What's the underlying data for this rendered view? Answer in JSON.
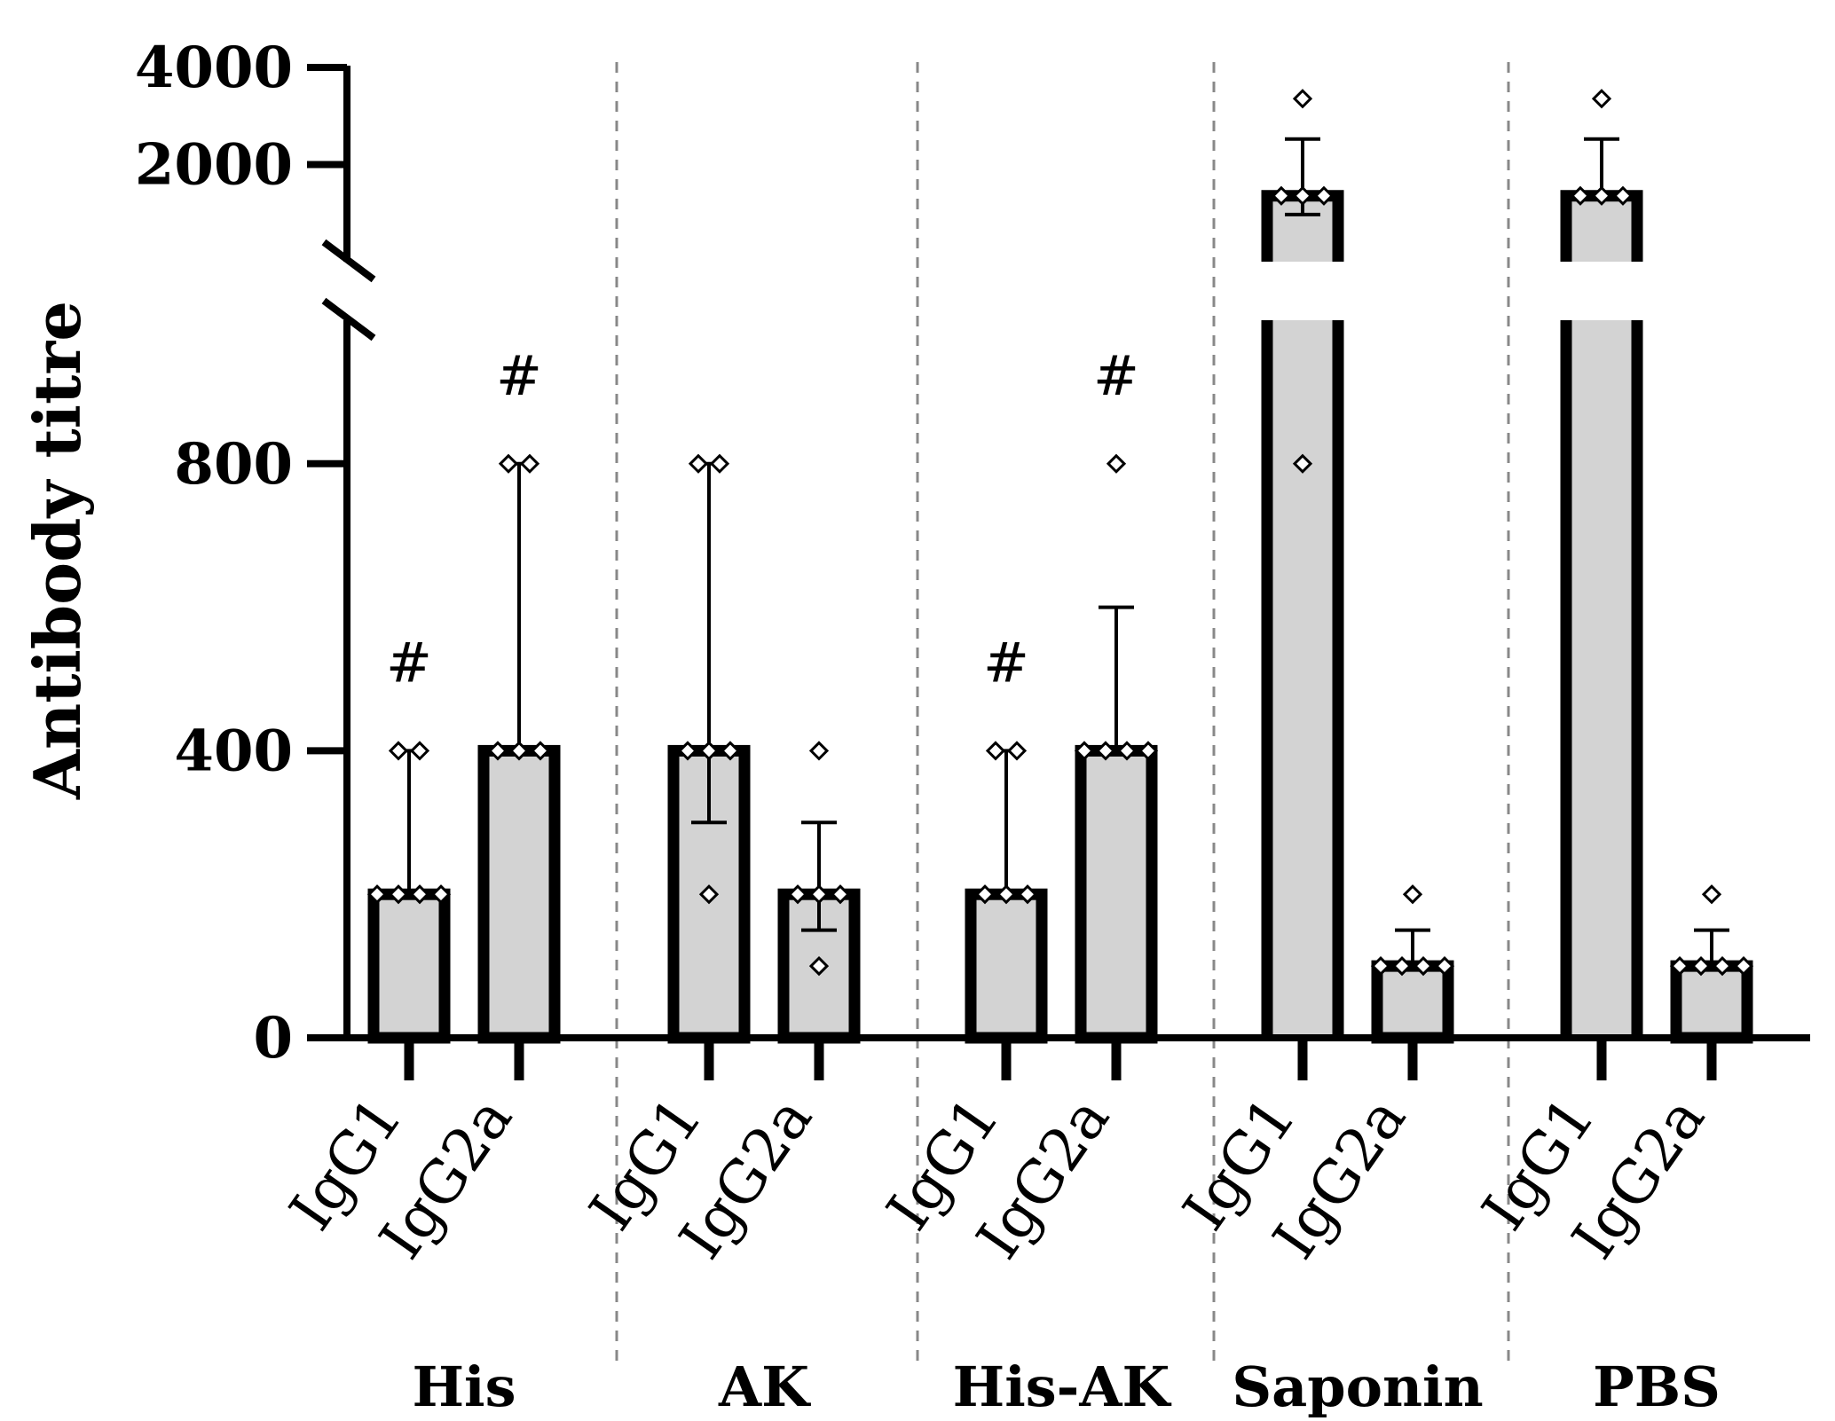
{
  "chart_data": {
    "type": "bar",
    "ylabel": "Antibody titre",
    "xlabel": "",
    "title": "",
    "y_segments": {
      "lower": {
        "range": [
          0,
          1000
        ],
        "ticks": [
          0,
          400,
          800
        ]
      },
      "upper": {
        "range": [
          1000,
          4000
        ],
        "ticks": [
          2000,
          4000
        ]
      }
    },
    "y_tick_labels": [
      "0",
      "400",
      "800",
      "2000",
      "4000"
    ],
    "groups": [
      "His",
      "AK",
      "His-AK",
      "Saponin",
      "PBS"
    ],
    "categories": [
      "IgG1",
      "IgG2a"
    ],
    "sig_symbol": "#",
    "series": [
      {
        "name": "His",
        "label": "His",
        "bars": [
          {
            "category": "IgG1",
            "mean": 200,
            "err_low": 200,
            "err_high": 400,
            "points": [
              400,
              400,
              200,
              200,
              200,
              200
            ],
            "significant": true
          },
          {
            "category": "IgG2a",
            "mean": 400,
            "err_low": 400,
            "err_high": 800,
            "points": [
              800,
              800,
              400,
              400,
              400
            ],
            "significant": true
          }
        ]
      },
      {
        "name": "AK",
        "label": "AK",
        "bars": [
          {
            "category": "IgG1",
            "mean": 400,
            "err_low": 300,
            "err_high": 800,
            "points": [
              800,
              800,
              400,
              400,
              400,
              200
            ],
            "significant": false
          },
          {
            "category": "IgG2a",
            "mean": 200,
            "err_low": 150,
            "err_high": 300,
            "points": [
              400,
              200,
              200,
              200,
              100
            ],
            "significant": false
          }
        ]
      },
      {
        "name": "His-AK",
        "label": "His-AK",
        "bars": [
          {
            "category": "IgG1",
            "mean": 200,
            "err_low": 200,
            "err_high": 400,
            "points": [
              400,
              400,
              200,
              200,
              200
            ],
            "significant": true
          },
          {
            "category": "IgG2a",
            "mean": 400,
            "err_low": 400,
            "err_high": 600,
            "points": [
              800,
              400,
              400,
              400,
              400
            ],
            "significant": true
          }
        ]
      },
      {
        "name": "Saponin",
        "label": "Saponin",
        "bars": [
          {
            "category": "IgG1",
            "mean": 1600,
            "err_low": 1400,
            "err_high": 2400,
            "points": [
              3200,
              1600,
              1600,
              1600,
              800
            ],
            "significant": false
          },
          {
            "category": "IgG2a",
            "mean": 100,
            "err_low": 100,
            "err_high": 150,
            "points": [
              200,
              100,
              100,
              100,
              100
            ],
            "significant": false
          }
        ]
      },
      {
        "name": "PBS",
        "label": "PBS",
        "bars": [
          {
            "category": "IgG1",
            "mean": 1600,
            "err_low": 1600,
            "err_high": 2400,
            "points": [
              3200,
              1600,
              1600,
              1600
            ],
            "significant": false
          },
          {
            "category": "IgG2a",
            "mean": 100,
            "err_low": 100,
            "err_high": 150,
            "points": [
              200,
              100,
              100,
              100,
              100
            ],
            "significant": false
          }
        ]
      }
    ],
    "colors": {
      "bar_fill": "#d3d3d3",
      "bar_edge": "#000000",
      "divider": "#888888"
    }
  }
}
